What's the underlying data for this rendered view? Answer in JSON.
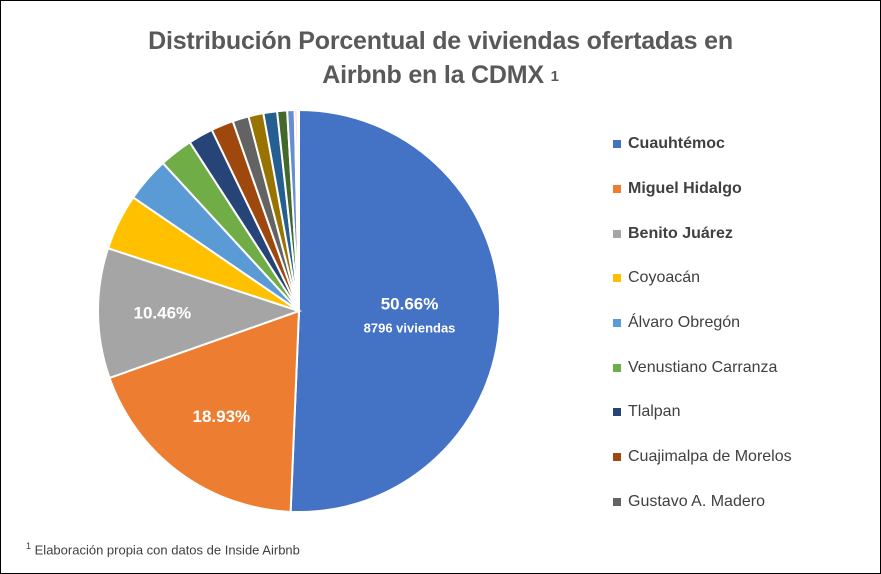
{
  "title_line1": "Distribución Porcentual de viviendas ofertadas en",
  "title_line2": "Airbnb en la CDMX",
  "title_sup": "1",
  "footnote_sup": "1",
  "footnote": "Elaboración propia con datos de Inside Airbnb",
  "chart_data": {
    "type": "pie",
    "title": "Distribución Porcentual de viviendas ofertadas en Airbnb en la CDMX",
    "legend_position": "right",
    "slices": [
      {
        "name": "Cuauhtémoc",
        "value": 50.66,
        "color": "#4472C4",
        "label": "50.66%",
        "sublabel": "8796 viviendas",
        "legend": true,
        "legend_bold": true
      },
      {
        "name": "Miguel Hidalgo",
        "value": 18.93,
        "color": "#ED7D31",
        "label": "18.93%",
        "legend": true,
        "legend_bold": true
      },
      {
        "name": "Benito Juárez",
        "value": 10.46,
        "color": "#A5A5A5",
        "label": "10.46%",
        "legend": true,
        "legend_bold": true
      },
      {
        "name": "Coyoacán",
        "value": 4.5,
        "color": "#FFC000",
        "legend": true
      },
      {
        "name": "Álvaro Obregón",
        "value": 3.6,
        "color": "#5B9BD5",
        "legend": true
      },
      {
        "name": "Venustiano Carranza",
        "value": 2.7,
        "color": "#70AD47",
        "legend": true
      },
      {
        "name": "Tlalpan",
        "value": 2.0,
        "color": "#264478",
        "legend": true
      },
      {
        "name": "Cuajimalpa de Morelos",
        "value": 1.8,
        "color": "#9E480E",
        "legend": true
      },
      {
        "name": "Gustavo A. Madero",
        "value": 1.3,
        "color": "#636363",
        "legend": true
      },
      {
        "name": "",
        "value": 1.2,
        "color": "#997300"
      },
      {
        "name": "",
        "value": 1.1,
        "color": "#255E91"
      },
      {
        "name": "",
        "value": 0.8,
        "color": "#43682B"
      },
      {
        "name": "",
        "value": 0.6,
        "color": "#698ED0"
      },
      {
        "name": "",
        "value": 0.2,
        "color": "#F1975A"
      },
      {
        "name": "",
        "value": 0.14,
        "color": "#B7B7B7"
      }
    ]
  }
}
